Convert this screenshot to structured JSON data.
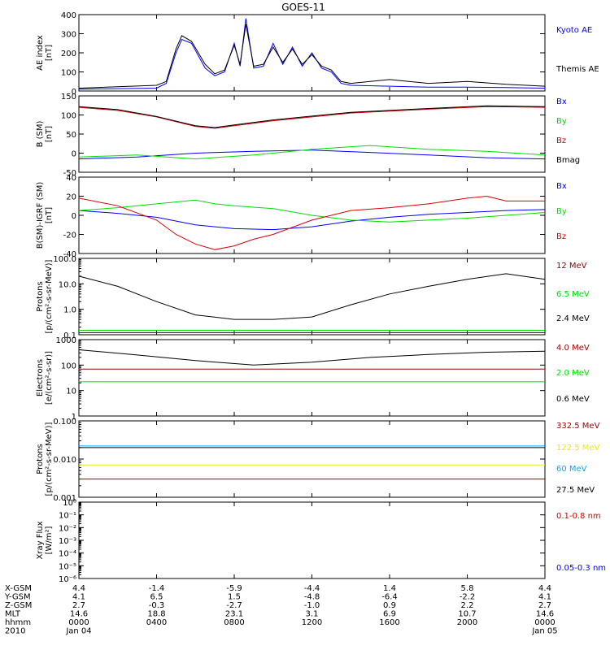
{
  "title": "GOES-11",
  "colors": {
    "black": "#000000",
    "blue": "#0000ff",
    "green": "#00dd00",
    "red": "#dd0000",
    "darkred": "#990000",
    "lightblue": "#00aaff",
    "yellow": "#eeee00"
  },
  "chart_data": [
    {
      "type": "line",
      "ylabel": [
        "AE index",
        "[nT]"
      ],
      "yscale": "linear",
      "ylim": [
        0,
        400
      ],
      "ticks": [
        0,
        100,
        200,
        300,
        400
      ],
      "tick_labels": [
        "0",
        "100",
        "200",
        "300",
        "400"
      ],
      "series": [
        {
          "name": "Kyoto AE",
          "color": "#0000ff",
          "x": [
            0,
            4,
            4.5,
            5,
            5.3,
            5.8,
            6.5,
            7,
            7.5,
            8,
            8.3,
            8.6,
            9,
            9.5,
            10,
            10.5,
            11,
            11.5,
            12,
            12.5,
            13,
            13.5,
            14,
            16,
            18,
            20,
            22,
            24
          ],
          "y": [
            10,
            15,
            40,
            200,
            270,
            250,
            120,
            80,
            100,
            250,
            130,
            380,
            120,
            130,
            250,
            140,
            230,
            130,
            200,
            120,
            100,
            40,
            30,
            25,
            20,
            20,
            18,
            15
          ]
        },
        {
          "name": "Themis AE",
          "color": "#000000",
          "x": [
            0,
            4,
            4.5,
            5,
            5.3,
            5.8,
            6.5,
            7,
            7.5,
            8,
            8.3,
            8.6,
            9,
            9.5,
            10,
            10.5,
            11,
            11.5,
            12,
            12.5,
            13,
            13.5,
            14,
            16,
            18,
            20,
            22,
            24
          ],
          "y": [
            15,
            30,
            50,
            220,
            290,
            260,
            140,
            90,
            110,
            240,
            140,
            350,
            130,
            140,
            230,
            150,
            220,
            140,
            190,
            130,
            110,
            50,
            40,
            60,
            40,
            50,
            35,
            25
          ]
        }
      ],
      "legend": [
        {
          "label": "Kyoto AE",
          "color": "#0000ff"
        },
        {
          "label": "Themis AE",
          "color": "#000000"
        }
      ]
    },
    {
      "type": "line",
      "ylabel": [
        "B (SM)",
        "[nT]"
      ],
      "yscale": "linear",
      "ylim": [
        -50,
        150
      ],
      "ticks": [
        -50,
        0,
        50,
        100,
        150
      ],
      "tick_labels": [
        "-50",
        "0",
        "50",
        "100",
        "150"
      ],
      "series": [
        {
          "name": "Bx",
          "color": "#0000ff",
          "x": [
            0,
            3,
            6,
            9,
            12,
            15,
            18,
            21,
            24
          ],
          "y": [
            -15,
            -10,
            0,
            5,
            8,
            2,
            -5,
            -12,
            -15
          ]
        },
        {
          "name": "By",
          "color": "#00dd00",
          "x": [
            0,
            3,
            6,
            9,
            12,
            15,
            18,
            21,
            24
          ],
          "y": [
            -10,
            -5,
            -15,
            -5,
            10,
            20,
            10,
            5,
            -5
          ]
        },
        {
          "name": "Bz",
          "color": "#dd0000",
          "x": [
            0,
            2,
            4,
            6,
            7,
            8,
            10,
            14,
            18,
            21,
            24
          ],
          "y": [
            120,
            112,
            95,
            70,
            65,
            72,
            85,
            105,
            115,
            122,
            120
          ]
        },
        {
          "name": "Bmag",
          "color": "#000000",
          "x": [
            0,
            2,
            4,
            6,
            7,
            8,
            10,
            14,
            18,
            21,
            24
          ],
          "y": [
            122,
            114,
            96,
            72,
            67,
            74,
            87,
            107,
            117,
            124,
            122
          ]
        }
      ],
      "legend": [
        {
          "label": "Bx",
          "color": "#0000ff"
        },
        {
          "label": "By",
          "color": "#00dd00"
        },
        {
          "label": "Bz",
          "color": "#dd0000"
        },
        {
          "label": "Bmag",
          "color": "#000000"
        }
      ]
    },
    {
      "type": "line",
      "ylabel": [
        "B(SM)-IGRF (SM)",
        "[nT]"
      ],
      "yscale": "linear",
      "ylim": [
        -40,
        40
      ],
      "ticks": [
        -40,
        -20,
        0,
        20,
        40
      ],
      "tick_labels": [
        "-40",
        "-20",
        "0",
        "20",
        "40"
      ],
      "series": [
        {
          "name": "Bx",
          "color": "#0000ff",
          "x": [
            0,
            2,
            4,
            6,
            8,
            10,
            12,
            14,
            16,
            18,
            20,
            22,
            24
          ],
          "y": [
            5,
            2,
            -2,
            -10,
            -14,
            -15,
            -12,
            -6,
            -2,
            1,
            3,
            5,
            6
          ]
        },
        {
          "name": "By",
          "color": "#00dd00",
          "x": [
            0,
            2,
            4,
            6,
            7,
            8,
            10,
            12,
            14,
            16,
            18,
            20,
            22,
            24
          ],
          "y": [
            5,
            8,
            12,
            16,
            12,
            10,
            7,
            0,
            -5,
            -7,
            -5,
            -3,
            0,
            3
          ]
        },
        {
          "name": "Bz",
          "color": "#dd0000",
          "x": [
            0,
            2,
            4,
            5,
            6,
            7,
            8,
            9,
            10,
            12,
            14,
            16,
            18,
            20,
            21,
            22,
            24
          ],
          "y": [
            18,
            10,
            -5,
            -20,
            -30,
            -36,
            -32,
            -25,
            -20,
            -5,
            5,
            8,
            12,
            18,
            20,
            15,
            15
          ]
        }
      ],
      "legend": [
        {
          "label": "Bx",
          "color": "#0000ff"
        },
        {
          "label": "By",
          "color": "#00dd00"
        },
        {
          "label": "Bz",
          "color": "#dd0000"
        }
      ]
    },
    {
      "type": "line",
      "ylabel": [
        "Protons",
        "[p/(cm²-s-sr-MeV)]"
      ],
      "yscale": "log",
      "ylim": [
        0.1,
        100
      ],
      "ticks": [
        0.1,
        1,
        10,
        100
      ],
      "tick_labels": [
        "0.1",
        "1.0",
        "10.0",
        "100.0"
      ],
      "series": [
        {
          "name": "12 MeV",
          "color": "#990000",
          "x": [
            0,
            6,
            12,
            18,
            24
          ],
          "y": [
            0.12,
            0.12,
            0.12,
            0.12,
            0.12
          ]
        },
        {
          "name": "6.5 MeV",
          "color": "#00dd00",
          "x": [
            0,
            6,
            12,
            18,
            24
          ],
          "y": [
            0.15,
            0.15,
            0.15,
            0.15,
            0.15
          ]
        },
        {
          "name": "2.4 MeV",
          "color": "#000000",
          "x": [
            0,
            2,
            4,
            6,
            8,
            10,
            12,
            14,
            16,
            18,
            20,
            22,
            24
          ],
          "y": [
            20,
            8,
            2,
            0.6,
            0.4,
            0.4,
            0.5,
            1.5,
            4,
            8,
            15,
            25,
            15
          ]
        }
      ],
      "legend": [
        {
          "label": "12 MeV",
          "color": "#990000"
        },
        {
          "label": "6.5 MeV",
          "color": "#00dd00"
        },
        {
          "label": "2.4 MeV",
          "color": "#000000"
        }
      ]
    },
    {
      "type": "line",
      "ylabel": [
        "Electrons",
        "[e/(cm²-s-sr)]"
      ],
      "yscale": "log",
      "ylim": [
        1,
        1000
      ],
      "ticks": [
        1,
        10,
        100,
        1000
      ],
      "tick_labels": [
        "1",
        "10",
        "100",
        "1000"
      ],
      "series": [
        {
          "name": "4.0 MeV",
          "color": "#990000",
          "x": [
            0,
            6,
            12,
            18,
            24
          ],
          "y": [
            70,
            70,
            70,
            70,
            70
          ]
        },
        {
          "name": "2.0 MeV",
          "color": "#00dd00",
          "x": [
            0,
            6,
            12,
            18,
            24
          ],
          "y": [
            22,
            22,
            22,
            22,
            22
          ]
        },
        {
          "name": "0.6 MeV",
          "color": "#000000",
          "x": [
            0,
            3,
            6,
            9,
            12,
            15,
            18,
            21,
            24
          ],
          "y": [
            400,
            250,
            150,
            100,
            130,
            200,
            260,
            320,
            350
          ]
        }
      ],
      "legend": [
        {
          "label": "4.0 MeV",
          "color": "#990000"
        },
        {
          "label": "2.0 MeV",
          "color": "#00dd00"
        },
        {
          "label": "0.6 MeV",
          "color": "#000000"
        }
      ]
    },
    {
      "type": "line",
      "ylabel": [
        "Protons",
        "[p/(cm²-s-sr-MeV)]"
      ],
      "yscale": "log",
      "ylim": [
        0.001,
        0.1
      ],
      "ticks": [
        0.001,
        0.01,
        0.1
      ],
      "tick_labels": [
        "0.001",
        "0.010",
        "0.100"
      ],
      "series": [
        {
          "name": "332.5 MeV",
          "color": "#990000",
          "x": [
            0,
            6,
            12,
            18,
            24
          ],
          "y": [
            0.003,
            0.003,
            0.003,
            0.003,
            0.003
          ]
        },
        {
          "name": "122.5 MeV",
          "color": "#eeee00",
          "x": [
            0,
            6,
            12,
            18,
            24
          ],
          "y": [
            0.007,
            0.007,
            0.007,
            0.007,
            0.007
          ]
        },
        {
          "name": "60 MeV",
          "color": "#00aaff",
          "x": [
            0,
            6,
            12,
            18,
            24
          ],
          "y": [
            0.022,
            0.022,
            0.022,
            0.022,
            0.022
          ]
        },
        {
          "name": "27.5 MeV",
          "color": "#000000",
          "x": [
            0,
            6,
            12,
            18,
            24
          ],
          "y": [
            0.02,
            0.02,
            0.02,
            0.02,
            0.02
          ]
        }
      ],
      "legend": [
        {
          "label": "332.5 MeV",
          "color": "#990000"
        },
        {
          "label": "122.5 MeV",
          "color": "#eeee00"
        },
        {
          "label": "60 MeV",
          "color": "#00aaff"
        },
        {
          "label": "27.5 MeV",
          "color": "#000000"
        }
      ]
    },
    {
      "type": "line",
      "ylabel": [
        "Xray Flux",
        "[W/m²]"
      ],
      "yscale": "log",
      "ylim": [
        1e-06,
        1
      ],
      "ticks": [
        1e-06,
        1e-05,
        0.0001,
        0.001,
        0.01,
        0.1,
        1
      ],
      "tick_labels": [
        "10⁻⁶",
        "10⁻⁵",
        "10⁻⁴",
        "10⁻³",
        "10⁻²",
        "10⁻¹",
        "10⁰"
      ],
      "series": [],
      "legend": [
        {
          "label": "0.1-0.8 nm",
          "color": "#dd0000"
        },
        {
          "label": "0.05-0.3 nm",
          "color": "#0000ff"
        }
      ]
    }
  ],
  "x_axis": {
    "unit": "hours",
    "range": [
      0,
      24
    ],
    "tick_hours": [
      0,
      4,
      8,
      12,
      16,
      20,
      24
    ],
    "row_labels": [
      "X-GSM",
      "Y-GSM",
      "Z-GSM",
      "MLT",
      "hhmm",
      "2010"
    ],
    "columns": [
      [
        "4.4",
        "4.1",
        "2.7",
        "14.6",
        "0000",
        "Jan 04"
      ],
      [
        "-1.4",
        "6.5",
        "-0.3",
        "18.8",
        "0400",
        ""
      ],
      [
        "-5.9",
        "1.5",
        "-2.7",
        "23.1",
        "0800",
        ""
      ],
      [
        "-4.4",
        "-4.8",
        "-1.0",
        "3.1",
        "1200",
        ""
      ],
      [
        "1.4",
        "-6.4",
        "0.9",
        "6.9",
        "1600",
        ""
      ],
      [
        "5.8",
        "-2.2",
        "2.2",
        "10.7",
        "2000",
        ""
      ],
      [
        "4.4",
        "4.1",
        "2.7",
        "14.6",
        "0000",
        "Jan 05"
      ]
    ]
  }
}
